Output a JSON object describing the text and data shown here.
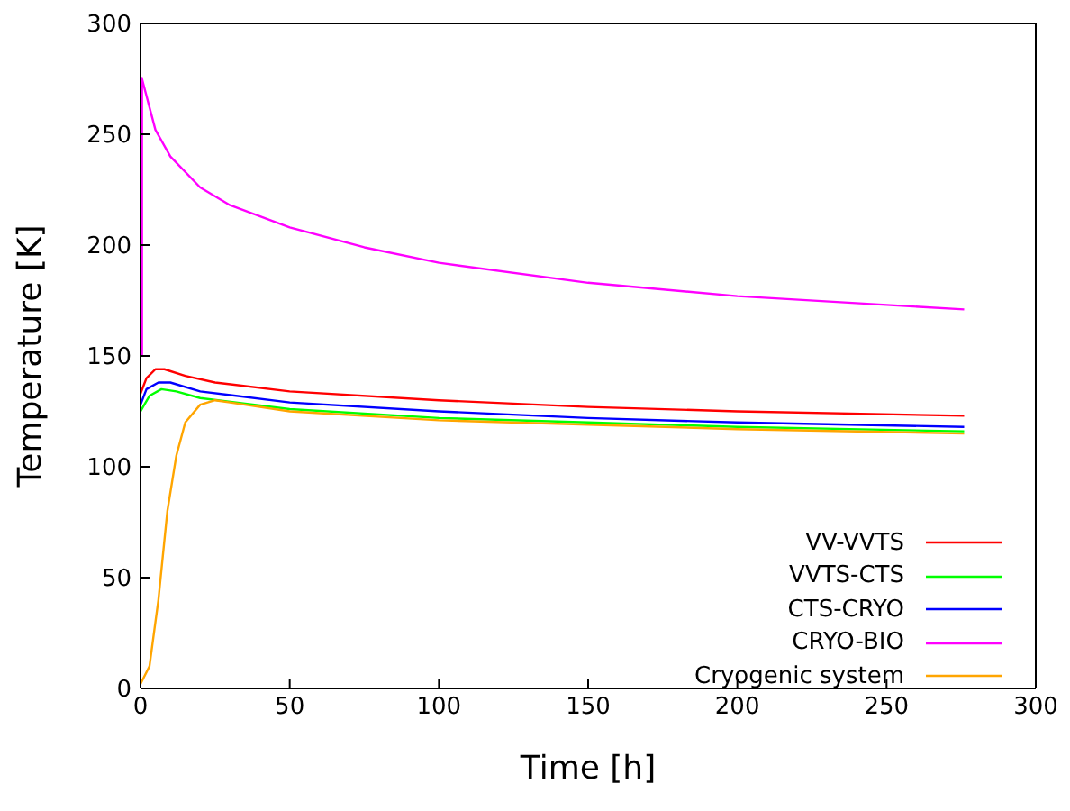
{
  "chart_data": {
    "type": "line",
    "xlabel": "Time [h]",
    "ylabel": "Temperature [K]",
    "xlim": [
      0,
      300
    ],
    "xticks": [
      0,
      50,
      100,
      150,
      200,
      250,
      300
    ],
    "ylim": [
      0,
      300
    ],
    "yticks": [
      0,
      50,
      100,
      150,
      200,
      250,
      300
    ],
    "legend": "bottom right",
    "grid": false,
    "marker": "none",
    "line_style": "solid",
    "series": [
      {
        "name": "VV-VVTS",
        "color": "#ff0000",
        "x": [
          0,
          2,
          5,
          8,
          15,
          25,
          50,
          100,
          150,
          200,
          276
        ],
        "values": [
          133,
          140,
          144,
          144,
          141,
          138,
          134,
          130,
          127,
          125,
          123
        ]
      },
      {
        "name": "VVTS-CTS",
        "color": "#00ff00",
        "x": [
          0,
          3,
          7,
          12,
          20,
          50,
          100,
          150,
          200,
          276
        ],
        "values": [
          125,
          132,
          135,
          134,
          131,
          126,
          122,
          120,
          118,
          116
        ]
      },
      {
        "name": "CTS-CRYO",
        "color": "#0000ff",
        "x": [
          0,
          2,
          6,
          10,
          20,
          50,
          100,
          150,
          200,
          276
        ],
        "values": [
          128,
          135,
          138,
          138,
          134,
          129,
          125,
          122,
          120,
          118
        ]
      },
      {
        "name": "CRYO-BIO",
        "color": "#ff00ff",
        "x": [
          0.5,
          0.5,
          5,
          10,
          20,
          30,
          50,
          75,
          100,
          150,
          200,
          250,
          276
        ],
        "values": [
          150,
          275,
          252,
          240,
          226,
          218,
          208,
          199,
          192,
          183,
          177,
          173,
          171
        ]
      },
      {
        "name": "Cryogenic system",
        "color": "#ffa500",
        "x": [
          0,
          3,
          6,
          9,
          12,
          15,
          20,
          25,
          30,
          50,
          100,
          150,
          200,
          276
        ],
        "values": [
          2,
          10,
          40,
          80,
          105,
          120,
          128,
          130,
          129,
          125,
          121,
          119,
          117,
          115
        ]
      }
    ]
  }
}
